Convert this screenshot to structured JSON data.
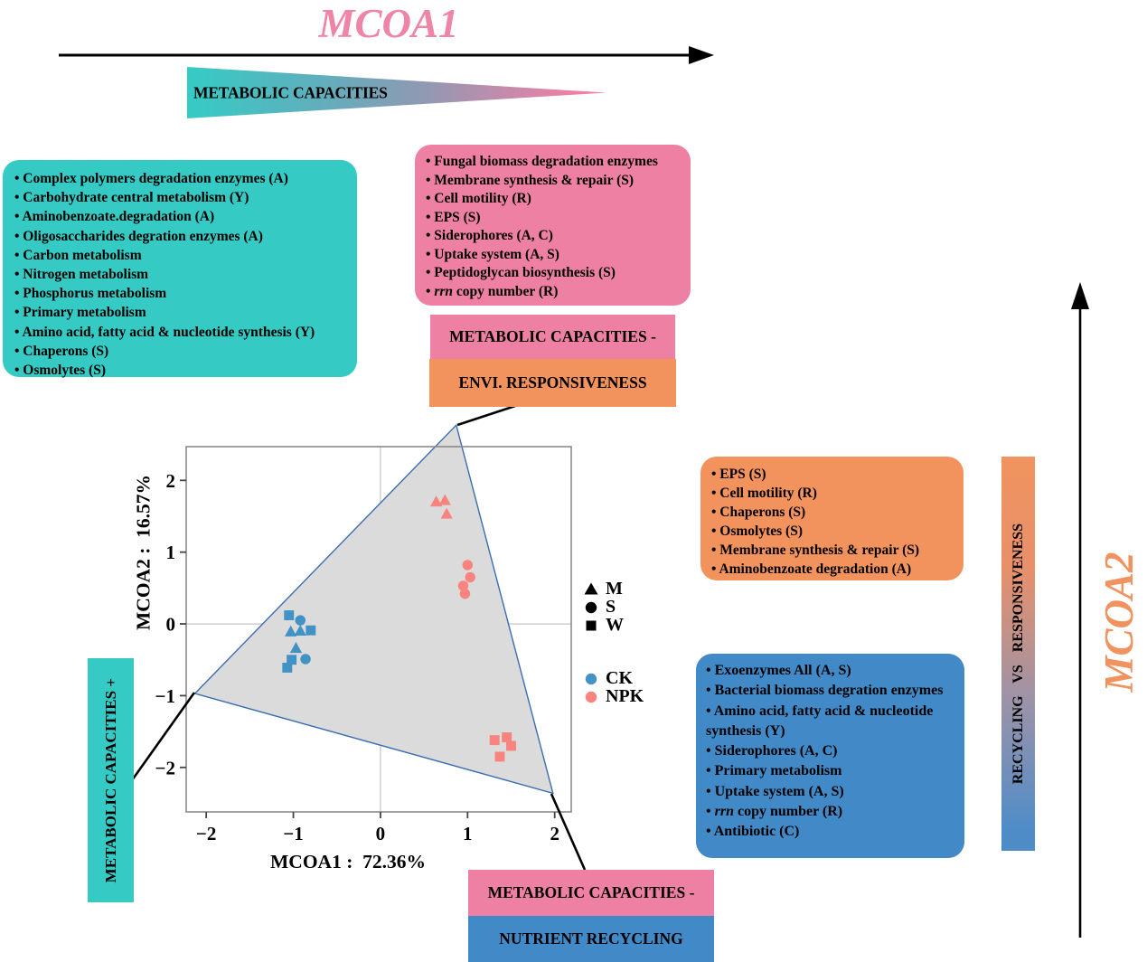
{
  "colors": {
    "teal": "#35cbc4",
    "pink": "#ee80a4",
    "orange": "#f2935d",
    "blue": "#4289c7",
    "title_pink": "#ef84a6",
    "title_orange": "#f0935e",
    "ck": "#4292c6",
    "npk": "#f9837e",
    "hull_fill": "#dbdbdb",
    "hull_stroke": "#3a6db0"
  },
  "titles": {
    "mcoa1": "MCOA1",
    "mcoa2": "MCOA2"
  },
  "gradient_triangle": {
    "label": "METABOLIC CAPACITIES"
  },
  "gradient_bar": {
    "label": "RECYCLING VS RESPONSIVENESS"
  },
  "side_labels": {
    "capacities_plus": "METABOLIC CAPACITIES +"
  },
  "callouts": {
    "env": {
      "line1": "METABOLIC CAPACITIES -",
      "line2": "ENVI. RESPONSIVENESS"
    },
    "nutrient": {
      "line1": "METABOLIC CAPACITIES -",
      "line2": "NUTRIENT RECYCLING"
    }
  },
  "boxes": {
    "metabolic_capacities": {
      "items": [
        "Complex polymers degradation enzymes (A)",
        "Carbohydrate central metabolism (Y)",
        "Aminobenzoate.degradation (A)",
        "Oligosaccharides degration enzymes (A)",
        "Carbon metabolism",
        "Nitrogen metabolism",
        "Phosphorus metabolism",
        "Primary metabolism",
        "Amino acid, fatty acid & nucleotide synthesis (Y)",
        "Chaperons (S)",
        "Osmolytes (S)"
      ]
    },
    "responsiveness_pink": {
      "items": [
        "Fungal biomass degradation enzymes",
        "Membrane synthesis & repair (S)",
        "Cell motility (R)",
        "EPS (S)",
        "Siderophores (A, C)",
        "Uptake system (A, S)",
        "Peptidoglycan biosynthesis (S)",
        "rrn copy number (R)"
      ]
    },
    "responsiveness_orange": {
      "items": [
        "EPS (S)",
        "Cell motility (R)",
        "Chaperons (S)",
        "Osmolytes (S)",
        "Membrane synthesis & repair (S)",
        "Aminobenzoate degradation (A)"
      ]
    },
    "recycling_blue": {
      "items": [
        "Exoenzymes All (A, S)",
        "Bacterial biomass degration enzymes",
        "Amino acid, fatty acid & nucleotide synthesis (Y)",
        "Siderophores (A, C)",
        "Primary metabolism",
        "Uptake system (A, S)",
        "rrn copy number (R)",
        "Antibiotic (C)"
      ]
    }
  },
  "chart_data": {
    "type": "scatter",
    "xlabel": "MCOA1 :  72.36%",
    "ylabel": "MCOA2 :  16.57%",
    "xlim": [
      -2.23,
      2.19
    ],
    "ylim": [
      -2.62,
      2.47
    ],
    "xticks": [
      -2,
      -1,
      0,
      1,
      2
    ],
    "yticks": [
      -2,
      -1,
      0,
      1,
      2
    ],
    "grid": "zero lines only",
    "legend_position": "right of panel",
    "shape_legend": [
      {
        "marker": "triangle",
        "label": "M"
      },
      {
        "marker": "circle",
        "label": "S"
      },
      {
        "marker": "square",
        "label": "W"
      }
    ],
    "color_legend": [
      {
        "label": "CK",
        "color": "#4292c6"
      },
      {
        "label": "NPK",
        "color": "#f9837e"
      }
    ],
    "hull": [
      [
        0.87,
        2.77
      ],
      [
        -2.13,
        -0.97
      ],
      [
        1.98,
        -2.36
      ]
    ],
    "series": [
      {
        "treatment": "CK",
        "marker": "triangle",
        "color": "#4292c6",
        "points": [
          [
            -1.03,
            -0.11
          ],
          [
            -0.92,
            -0.1
          ],
          [
            -0.97,
            -0.34
          ]
        ]
      },
      {
        "treatment": "CK",
        "marker": "circle",
        "color": "#4292c6",
        "points": [
          [
            -0.92,
            0.05
          ],
          [
            -0.86,
            -0.49
          ]
        ]
      },
      {
        "treatment": "CK",
        "marker": "square",
        "color": "#4292c6",
        "points": [
          [
            -1.05,
            0.12
          ],
          [
            -0.8,
            -0.09
          ],
          [
            -1.02,
            -0.5
          ],
          [
            -1.07,
            -0.61
          ]
        ]
      },
      {
        "treatment": "NPK",
        "marker": "triangle",
        "color": "#f9837e",
        "points": [
          [
            0.64,
            1.7
          ],
          [
            0.74,
            1.72
          ],
          [
            0.76,
            1.53
          ]
        ]
      },
      {
        "treatment": "NPK",
        "marker": "circle",
        "color": "#f9837e",
        "points": [
          [
            1.0,
            0.82
          ],
          [
            1.03,
            0.65
          ],
          [
            0.95,
            0.53
          ],
          [
            0.97,
            0.42
          ]
        ]
      },
      {
        "treatment": "NPK",
        "marker": "square",
        "color": "#f9837e",
        "points": [
          [
            1.31,
            -1.62
          ],
          [
            1.45,
            -1.58
          ],
          [
            1.5,
            -1.7
          ],
          [
            1.37,
            -1.85
          ]
        ]
      }
    ]
  }
}
